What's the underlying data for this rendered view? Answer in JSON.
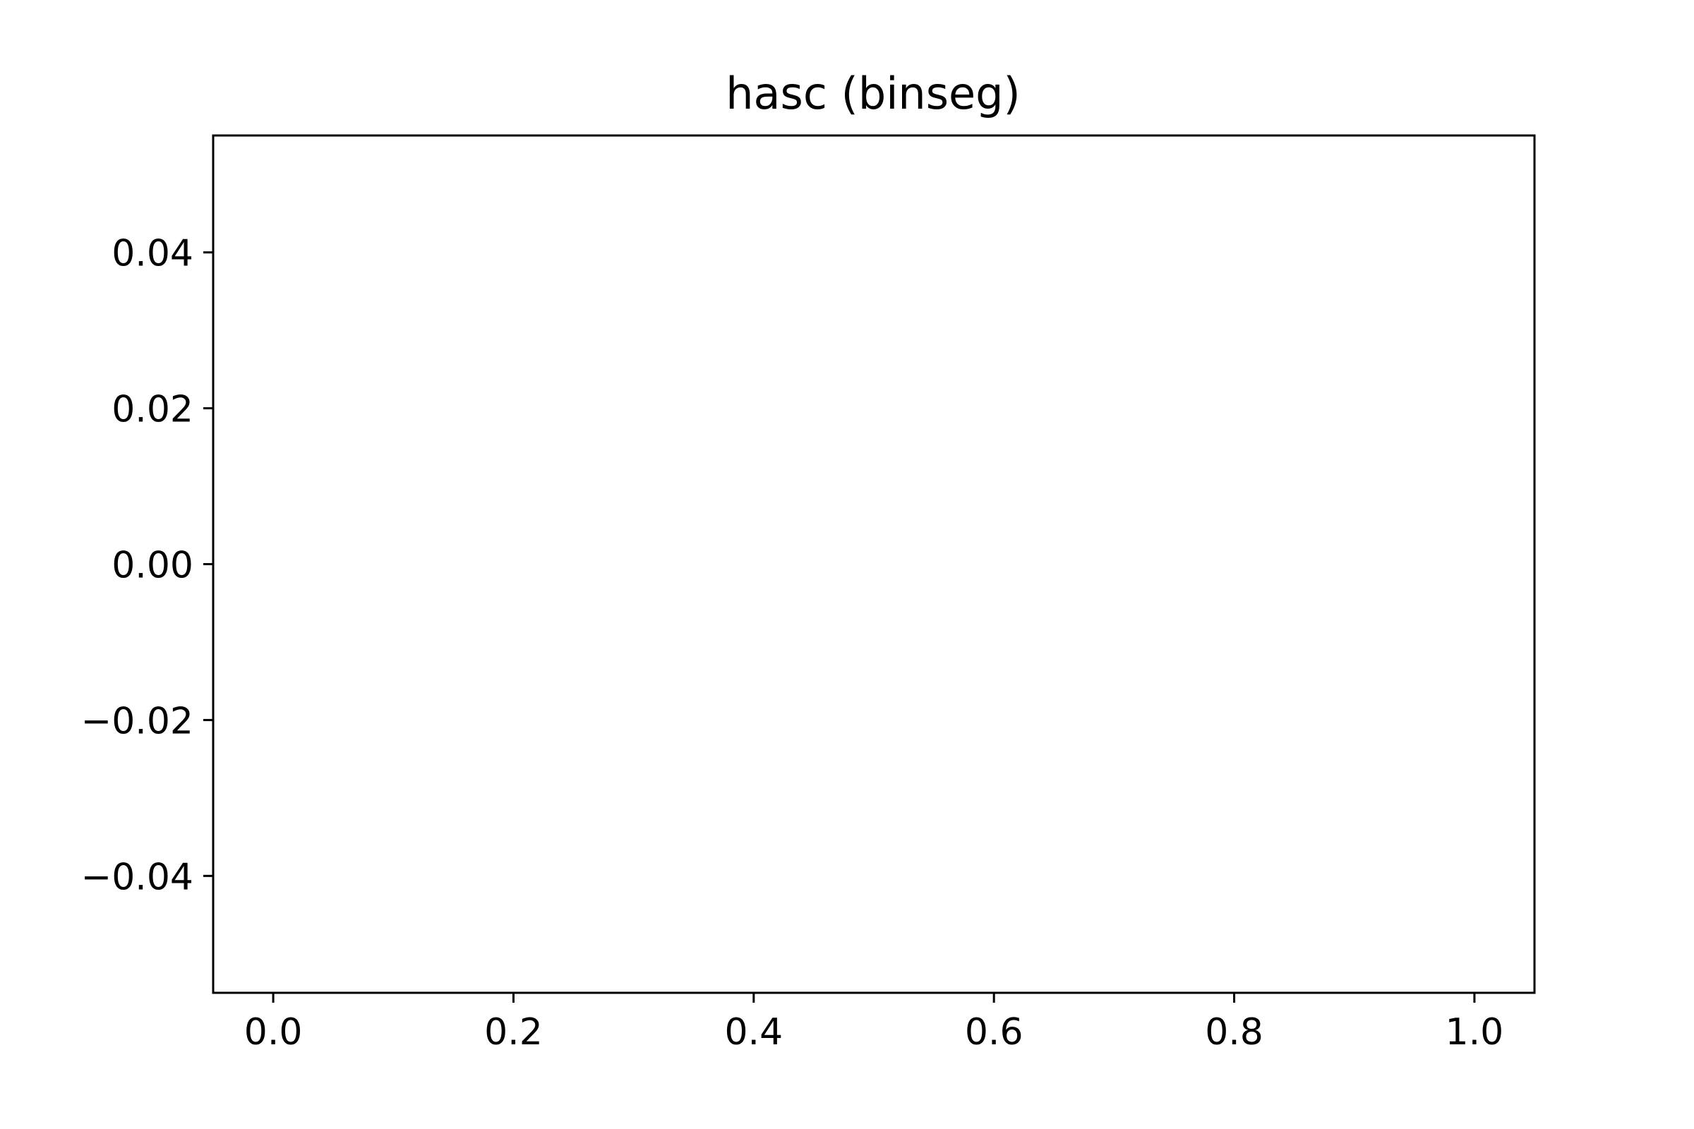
{
  "chart_data": {
    "type": "line",
    "title": "hasc (binseg)",
    "xlabel": "",
    "ylabel": "",
    "series": [],
    "xlim": [
      -0.05,
      1.05
    ],
    "ylim": [
      -0.055,
      0.055
    ],
    "xticks": [
      0.0,
      0.2,
      0.4,
      0.6,
      0.8,
      1.0
    ],
    "xtick_labels": [
      "0.0",
      "0.2",
      "0.4",
      "0.6",
      "0.8",
      "1.0"
    ],
    "yticks": [
      0.04,
      0.02,
      0.0,
      -0.02,
      -0.04
    ],
    "ytick_labels": [
      "0.04",
      "0.02",
      "0.00",
      "−0.02",
      "−0.04"
    ],
    "grid": false,
    "legend": "none",
    "colors": {
      "axes": "#000000",
      "background": "#ffffff"
    }
  }
}
